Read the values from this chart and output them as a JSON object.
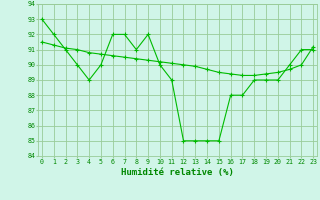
{
  "line1_x": [
    0,
    1,
    2,
    3,
    4,
    5,
    6,
    7,
    8,
    9,
    10,
    11,
    12,
    13,
    14,
    15,
    16,
    17,
    18,
    19,
    20,
    21,
    22,
    23
  ],
  "line1_y": [
    93,
    92,
    91,
    90,
    89,
    90,
    92,
    92,
    91,
    92,
    90,
    89,
    85,
    85,
    85,
    85,
    88,
    88,
    89,
    89,
    89,
    90,
    91,
    91
  ],
  "line2_x": [
    0,
    1,
    2,
    3,
    4,
    5,
    6,
    7,
    8,
    9,
    10,
    11,
    12,
    13,
    14,
    15,
    16,
    17,
    18,
    19,
    20,
    21,
    22,
    23
  ],
  "line2_y": [
    91.5,
    91.3,
    91.1,
    91.0,
    90.8,
    90.7,
    90.6,
    90.5,
    90.4,
    90.3,
    90.2,
    90.1,
    90.0,
    89.9,
    89.7,
    89.5,
    89.4,
    89.3,
    89.3,
    89.4,
    89.5,
    89.7,
    90.0,
    91.2
  ],
  "line_color": "#00bb00",
  "bg_color": "#d0f5e8",
  "grid_color": "#99cc99",
  "xlabel": "Humidité relative (%)",
  "xlabel_color": "#008800",
  "tick_color": "#008800",
  "ylim": [
    84,
    94
  ],
  "xlim": [
    -0.3,
    23.3
  ],
  "yticks": [
    84,
    85,
    86,
    87,
    88,
    89,
    90,
    91,
    92,
    93,
    94
  ],
  "xticks": [
    0,
    1,
    2,
    3,
    4,
    5,
    6,
    7,
    8,
    9,
    10,
    11,
    12,
    13,
    14,
    15,
    16,
    17,
    18,
    19,
    20,
    21,
    22,
    23
  ],
  "xtick_labels": [
    "0",
    "1",
    "2",
    "3",
    "4",
    "5",
    "6",
    "7",
    "8",
    "9",
    "10",
    "11",
    "12",
    "13",
    "14",
    "15",
    "16",
    "17",
    "18",
    "19",
    "20",
    "21",
    "22",
    "23"
  ]
}
